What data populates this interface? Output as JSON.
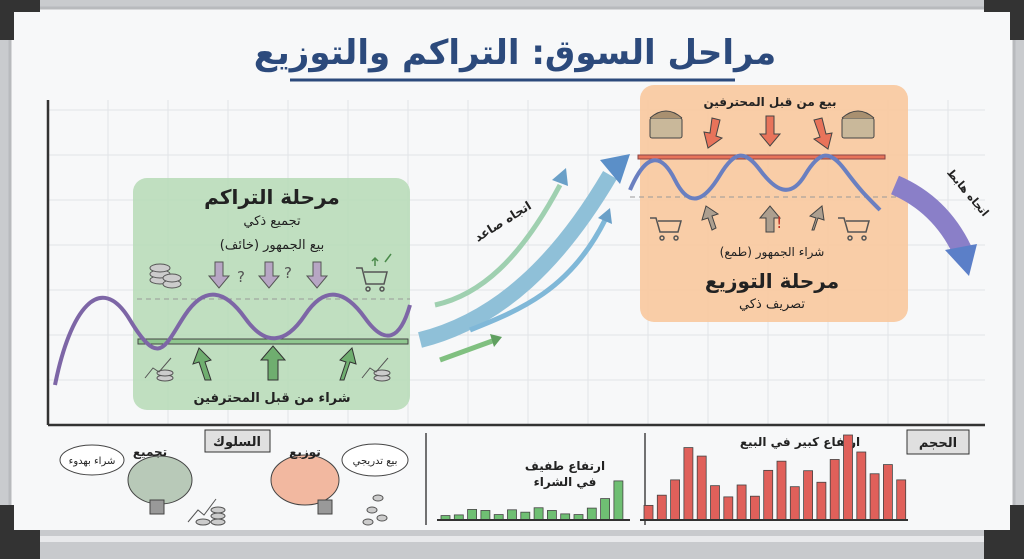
{
  "title": "مراحل السوق: التراكم والتوزيع",
  "accumulation": {
    "title": "مرحلة التراكم",
    "subtitle": "تجميع ذكي",
    "public_label": "بيع الجمهور (خائف)",
    "pro_label": "شراء من قبل المحترفين",
    "color": "#b9dcb9"
  },
  "distribution": {
    "title": "مرحلة التوزيع",
    "subtitle": "تصريف ذكي",
    "public_label": "شراء الجمهور (طمع)",
    "pro_label": "بيع من قبل المحترفين",
    "color": "#f8c9a0"
  },
  "trends": {
    "up": "اتجاه صاعد",
    "down": "اتجاه هابط"
  },
  "behavior": {
    "header": "السلوك",
    "accumulation_label": "تجميع",
    "accumulation_thought": "شراء بهدوء",
    "distribution_label": "توزيع",
    "distribution_thought": "بيع تدريجي"
  },
  "volume": {
    "header": "الحجم",
    "buy_label_line1": "ارتفاع طفيف",
    "buy_label_line2": "في الشراء",
    "sell_label": "ارتفاع كبير في البيع",
    "buy_bars": [
      13,
      15,
      31,
      28,
      16,
      30,
      23,
      36,
      28,
      18,
      16,
      35,
      63,
      115
    ],
    "sell_bars": [
      43,
      73,
      118,
      213,
      188,
      101,
      68,
      103,
      70,
      146,
      173,
      98,
      145,
      111,
      178,
      250,
      200,
      136,
      163,
      118
    ],
    "buy_color": "#6fbf73",
    "sell_color": "#e0605a"
  },
  "icons": {
    "coins": "coins-icon",
    "cart": "shopping-cart-icon",
    "chest": "treasure-chest-icon",
    "brain": "brain-icon"
  }
}
